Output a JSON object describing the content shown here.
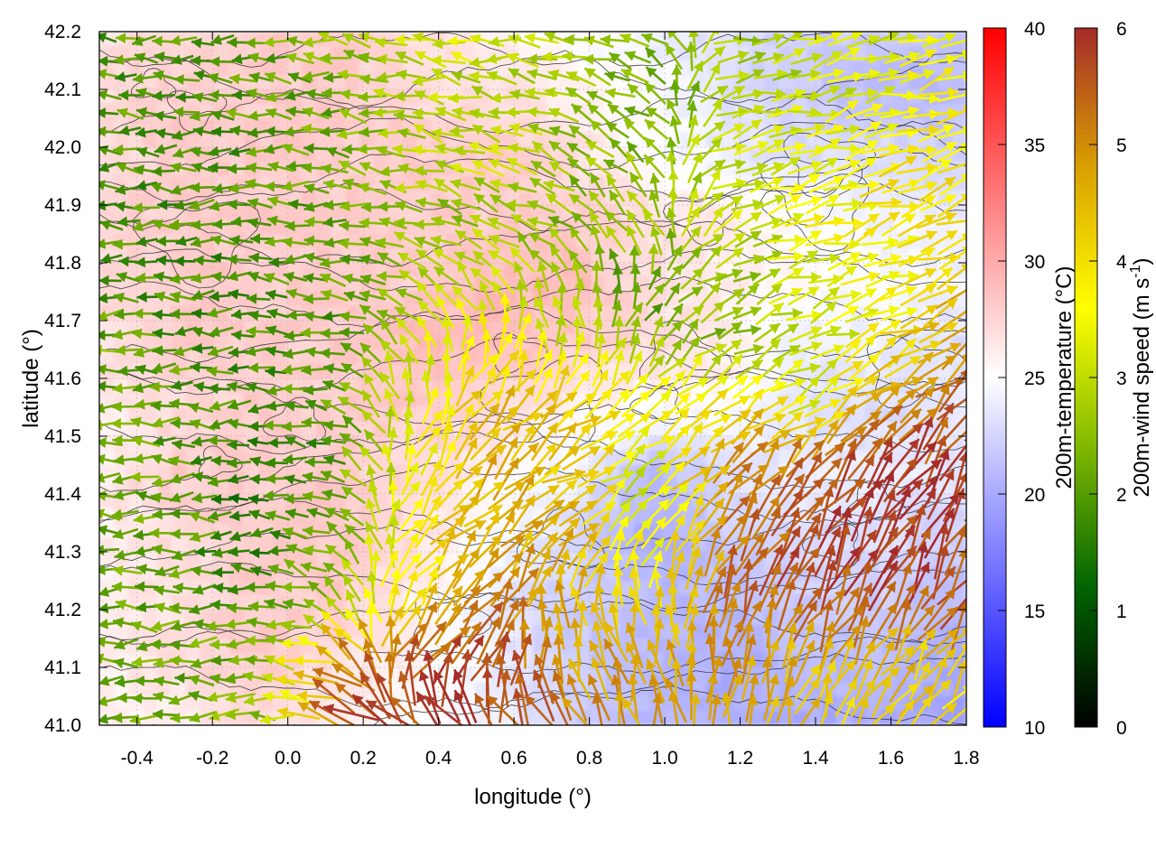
{
  "chart_data": {
    "type": "heatmap",
    "title": "",
    "xlabel": "longitude (°)",
    "ylabel": "latitude (°)",
    "xlim": [
      -0.5,
      1.8
    ],
    "ylim": [
      41.0,
      42.2
    ],
    "x_ticks": [
      "-0.4",
      "-0.2",
      "0.0",
      "0.2",
      "0.4",
      "0.6",
      "0.8",
      "1.0",
      "1.2",
      "1.4",
      "1.6",
      "1.8"
    ],
    "y_ticks": [
      "41.0",
      "41.1",
      "41.2",
      "41.3",
      "41.4",
      "41.5",
      "41.6",
      "41.7",
      "41.8",
      "41.9",
      "42.0",
      "42.1",
      "42.2"
    ],
    "grid": true,
    "overlays": [
      "terrain contours",
      "wind vectors colored by speed"
    ],
    "colorbars": [
      {
        "label": "200m-temperature (°C)",
        "range": [
          10,
          40
        ],
        "ticks": [
          "10",
          "15",
          "20",
          "25",
          "30",
          "35",
          "40"
        ],
        "colors": [
          "#0000ff",
          "#ffffff",
          "#ff0000"
        ]
      },
      {
        "label_main": "200m-wind speed (m s",
        "label_sup": "-1",
        "label_end": ")",
        "range": [
          0,
          6
        ],
        "ticks": [
          "0",
          "1",
          "2",
          "3",
          "4",
          "5",
          "6"
        ],
        "colors": [
          "#000000",
          "#006400",
          "#7fb800",
          "#ffff00",
          "#d9a000",
          "#a52a2a"
        ]
      }
    ],
    "temperature_field": [
      [
        27,
        27,
        28,
        28,
        27,
        26,
        25,
        24,
        23,
        22,
        22,
        21
      ],
      [
        27,
        28,
        28,
        28,
        27,
        27,
        26,
        25,
        23,
        22,
        21,
        21
      ],
      [
        27,
        28,
        28,
        28,
        28,
        28,
        27,
        25,
        24,
        23,
        23,
        22
      ],
      [
        27,
        28,
        28,
        28,
        28,
        28,
        28,
        27,
        26,
        25,
        24,
        24
      ],
      [
        27,
        28,
        28,
        28,
        28,
        29,
        29,
        27,
        26,
        25,
        25,
        24
      ],
      [
        27,
        28,
        28,
        28,
        29,
        29,
        28,
        27,
        26,
        24,
        24,
        23
      ],
      [
        26,
        27,
        28,
        28,
        28,
        27,
        26,
        25,
        25,
        23,
        23,
        24
      ],
      [
        26,
        28,
        28,
        28,
        27,
        26,
        24,
        21,
        23,
        24,
        24,
        23
      ],
      [
        26,
        27,
        28,
        28,
        27,
        25,
        23,
        20,
        22,
        23,
        23,
        22
      ],
      [
        26,
        27,
        28,
        28,
        26,
        24,
        22,
        21,
        21,
        22,
        22,
        21
      ],
      [
        26,
        27,
        28,
        27,
        26,
        24,
        22,
        21,
        20,
        21,
        21,
        20
      ],
      [
        26,
        26,
        27,
        26,
        25,
        24,
        22,
        21,
        20,
        20,
        20,
        19
      ]
    ],
    "wind_field_note": "speed (m/s) and direction: west half 1.5-2.5 m/s from east; southeast 4-6 m/s from southwest",
    "wind_speed_field": [
      [
        2.0,
        2.0,
        2.2,
        2.5,
        3.0,
        3.2,
        2.8,
        2.5,
        2.8,
        3.0,
        3.2,
        3.5
      ],
      [
        2.0,
        2.0,
        2.0,
        2.3,
        2.8,
        3.0,
        2.5,
        2.2,
        2.8,
        3.0,
        3.5,
        3.8
      ],
      [
        2.0,
        1.8,
        2.0,
        2.2,
        2.8,
        3.0,
        2.5,
        2.5,
        3.0,
        3.5,
        3.8,
        4.0
      ],
      [
        2.0,
        1.8,
        1.8,
        2.2,
        2.6,
        2.6,
        2.5,
        2.7,
        3.0,
        3.5,
        3.8,
        4.0
      ],
      [
        2.0,
        1.8,
        1.8,
        2.0,
        2.6,
        3.2,
        2.5,
        2.0,
        2.5,
        3.2,
        3.6,
        4.5
      ],
      [
        2.2,
        2.0,
        1.8,
        2.0,
        3.0,
        3.8,
        3.2,
        2.5,
        2.6,
        3.0,
        3.8,
        5.0
      ],
      [
        2.2,
        2.0,
        1.8,
        2.0,
        3.2,
        4.5,
        4.2,
        3.8,
        4.2,
        3.5,
        5.0,
        5.5
      ],
      [
        2.2,
        2.0,
        1.6,
        2.0,
        3.5,
        4.6,
        4.2,
        3.0,
        5.0,
        5.5,
        5.8,
        6.0
      ],
      [
        2.2,
        2.0,
        1.6,
        2.2,
        3.8,
        4.8,
        4.4,
        3.2,
        5.2,
        5.8,
        5.8,
        5.8
      ],
      [
        2.2,
        2.0,
        1.8,
        2.5,
        4.0,
        5.0,
        4.5,
        4.0,
        5.2,
        5.6,
        5.6,
        5.5
      ],
      [
        2.2,
        2.2,
        2.2,
        5.0,
        5.5,
        5.8,
        4.8,
        4.6,
        4.8,
        4.5,
        4.4,
        4.2
      ],
      [
        2.0,
        2.2,
        2.5,
        5.5,
        5.8,
        5.8,
        5.0,
        4.8,
        4.6,
        4.4,
        4.2,
        4.0
      ]
    ],
    "wind_dir_field": [
      [
        180,
        180,
        175,
        170,
        170,
        175,
        170,
        160,
        10,
        15,
        15,
        15
      ],
      [
        180,
        180,
        180,
        175,
        170,
        170,
        160,
        150,
        10,
        15,
        15,
        15
      ],
      [
        180,
        180,
        180,
        175,
        165,
        160,
        150,
        120,
        20,
        15,
        15,
        20
      ],
      [
        180,
        180,
        180,
        175,
        165,
        160,
        150,
        120,
        20,
        15,
        15,
        20
      ],
      [
        180,
        180,
        180,
        170,
        150,
        120,
        100,
        60,
        30,
        20,
        20,
        25
      ],
      [
        180,
        180,
        180,
        170,
        110,
        70,
        90,
        60,
        30,
        20,
        25,
        30
      ],
      [
        180,
        180,
        180,
        165,
        80,
        45,
        40,
        30,
        40,
        30,
        40,
        50
      ],
      [
        180,
        180,
        180,
        160,
        60,
        45,
        30,
        40,
        50,
        50,
        55,
        55
      ],
      [
        180,
        180,
        180,
        150,
        50,
        45,
        35,
        60,
        60,
        60,
        60,
        60
      ],
      [
        180,
        180,
        180,
        140,
        55,
        50,
        100,
        100,
        70,
        60,
        60,
        55
      ],
      [
        180,
        180,
        180,
        150,
        55,
        60,
        100,
        100,
        90,
        70,
        60,
        55
      ],
      [
        180,
        180,
        180,
        160,
        150,
        130,
        120,
        100,
        80,
        70,
        60,
        55
      ]
    ]
  }
}
